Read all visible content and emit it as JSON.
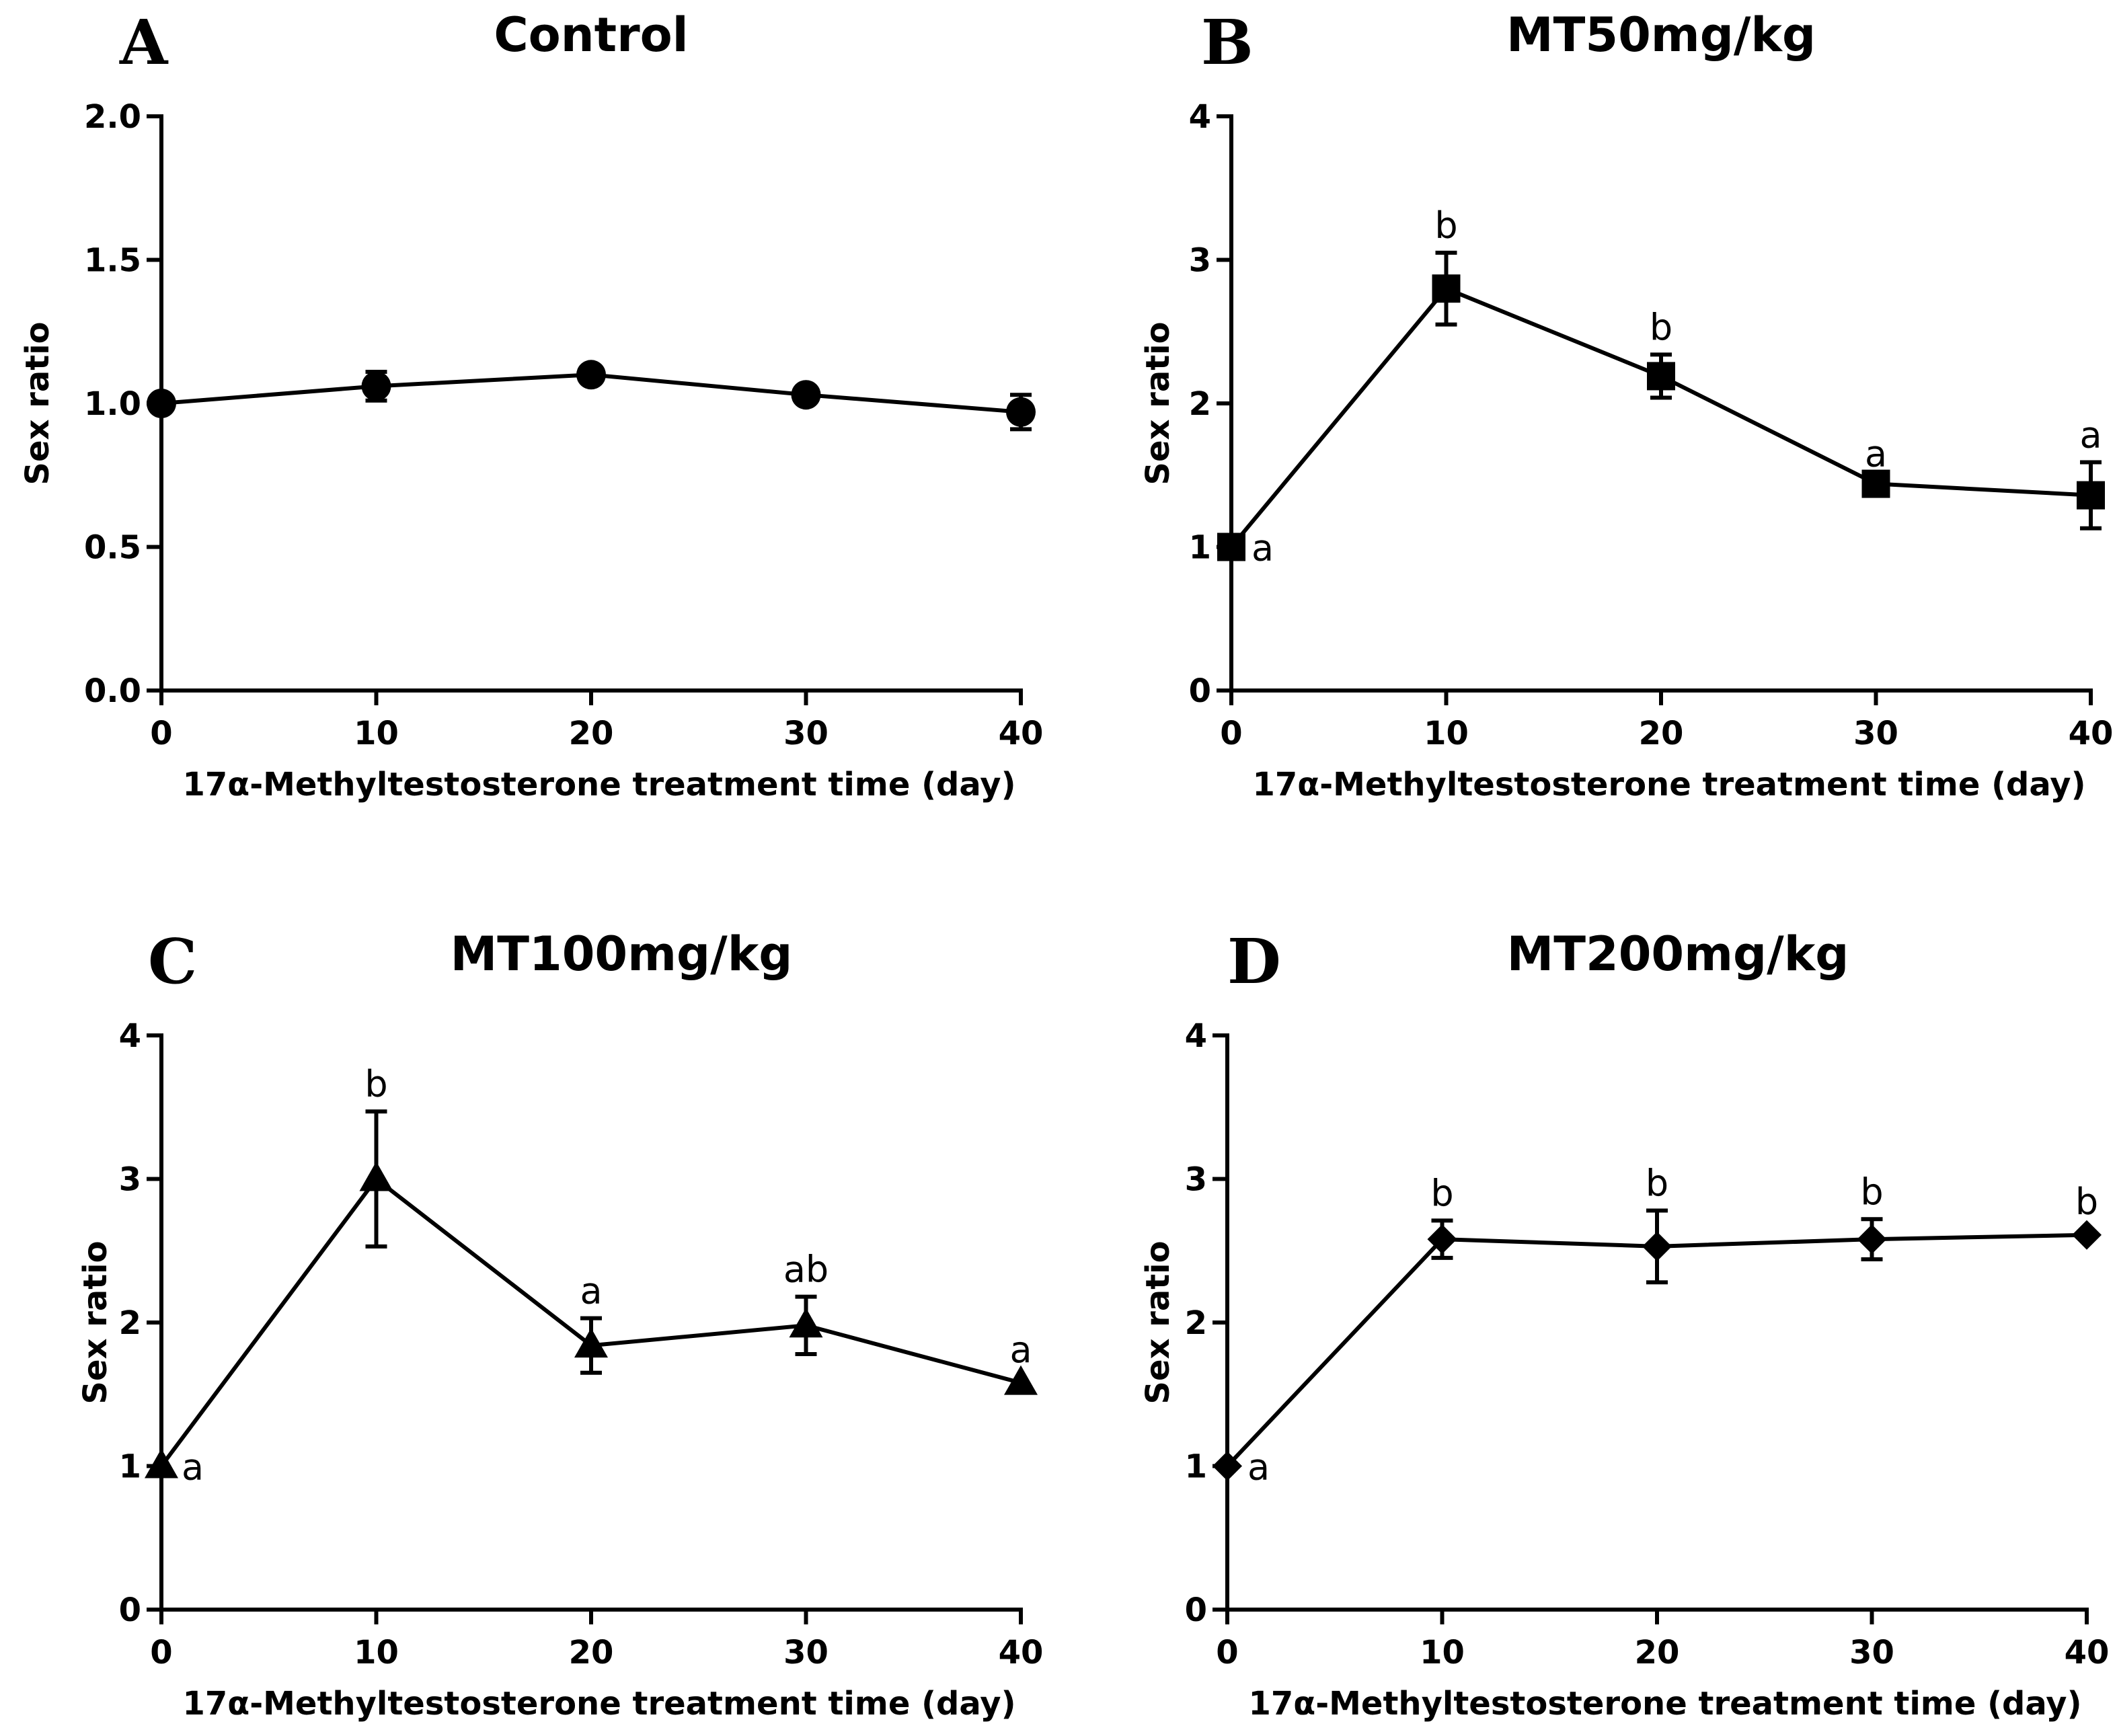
{
  "chart_data": [
    {
      "type": "line",
      "panel": "A",
      "title": "Control",
      "xlabel": "17α-Methyltestosterone treatment time (day)",
      "ylabel": "Sex ratio",
      "xlim": [
        0,
        40
      ],
      "ylim": [
        0,
        2.0
      ],
      "x_ticks": [
        0,
        10,
        20,
        30,
        40
      ],
      "x_tick_labels": [
        "0",
        "10",
        "20",
        "30",
        "40"
      ],
      "y_ticks": [
        0,
        0.5,
        1.0,
        1.5,
        2.0
      ],
      "y_tick_labels": [
        "0.0",
        "0.5",
        "1.0",
        "1.5",
        "2.0"
      ],
      "marker": "circle",
      "series": [
        {
          "name": "Control",
          "x": [
            0,
            10,
            20,
            30,
            40
          ],
          "values": [
            1.0,
            1.06,
            1.1,
            1.03,
            0.97
          ],
          "error": [
            0,
            0.05,
            0,
            0,
            0.06
          ]
        }
      ],
      "annotations": []
    },
    {
      "type": "line",
      "panel": "B",
      "title": "MT50mg/kg",
      "xlabel": "17α-Methyltestosterone treatment time (day)",
      "ylabel": "Sex ratio",
      "xlim": [
        0,
        40
      ],
      "ylim": [
        0,
        4
      ],
      "x_ticks": [
        0,
        10,
        20,
        30,
        40
      ],
      "x_tick_labels": [
        "0",
        "10",
        "20",
        "30",
        "40"
      ],
      "y_ticks": [
        0,
        1,
        2,
        3,
        4
      ],
      "y_tick_labels": [
        "0",
        "1",
        "2",
        "3",
        "4"
      ],
      "marker": "square",
      "series": [
        {
          "name": "MT50mg/kg",
          "x": [
            0,
            10,
            20,
            30,
            40
          ],
          "values": [
            1.0,
            2.8,
            2.19,
            1.44,
            1.36
          ],
          "error": [
            0,
            0.25,
            0.15,
            0.02,
            0.23
          ]
        }
      ],
      "annotations": [
        {
          "x": 0,
          "y": 1.0,
          "text": "a",
          "position": "right"
        },
        {
          "x": 10,
          "y": 3.05,
          "text": "b",
          "position": "above"
        },
        {
          "x": 20,
          "y": 2.34,
          "text": "b",
          "position": "above"
        },
        {
          "x": 30,
          "y": 1.46,
          "text": "a",
          "position": "above"
        },
        {
          "x": 40,
          "y": 1.59,
          "text": "a",
          "position": "above"
        }
      ]
    },
    {
      "type": "line",
      "panel": "C",
      "title": "MT100mg/kg",
      "xlabel": "17α-Methyltestosterone treatment time (day)",
      "ylabel": "Sex ratio",
      "xlim": [
        0,
        40
      ],
      "ylim": [
        0,
        4
      ],
      "x_ticks": [
        0,
        10,
        20,
        30,
        40
      ],
      "x_tick_labels": [
        "0",
        "10",
        "20",
        "30",
        "40"
      ],
      "y_ticks": [
        0,
        1,
        2,
        3,
        4
      ],
      "y_tick_labels": [
        "0",
        "1",
        "2",
        "3",
        "4"
      ],
      "marker": "triangle",
      "series": [
        {
          "name": "MT100mg/kg",
          "x": [
            0,
            10,
            20,
            30,
            40
          ],
          "values": [
            1.0,
            3.0,
            1.84,
            1.98,
            1.58
          ],
          "error": [
            0,
            0.47,
            0.19,
            0.2,
            0
          ]
        }
      ],
      "annotations": [
        {
          "x": 0,
          "y": 1.0,
          "text": "a",
          "position": "right"
        },
        {
          "x": 10,
          "y": 3.47,
          "text": "b",
          "position": "above"
        },
        {
          "x": 20,
          "y": 2.03,
          "text": "a",
          "position": "above"
        },
        {
          "x": 30,
          "y": 2.18,
          "text": "ab",
          "position": "above"
        },
        {
          "x": 40,
          "y": 1.62,
          "text": "a",
          "position": "above"
        }
      ]
    },
    {
      "type": "line",
      "panel": "D",
      "title": "MT200mg/kg",
      "xlabel": "17α-Methyltestosterone treatment time (day)",
      "ylabel": "Sex ratio",
      "xlim": [
        0,
        40
      ],
      "ylim": [
        0,
        4
      ],
      "x_ticks": [
        0,
        10,
        20,
        30,
        40
      ],
      "x_tick_labels": [
        "0",
        "10",
        "20",
        "30",
        "40"
      ],
      "y_ticks": [
        0,
        1,
        2,
        3,
        4
      ],
      "y_tick_labels": [
        "0",
        "1",
        "2",
        "3",
        "4"
      ],
      "marker": "diamond",
      "series": [
        {
          "name": "MT200mg/kg",
          "x": [
            0,
            10,
            20,
            30,
            40
          ],
          "values": [
            1.0,
            2.58,
            2.53,
            2.58,
            2.61
          ],
          "error": [
            0,
            0.13,
            0.25,
            0.14,
            0
          ]
        }
      ],
      "annotations": [
        {
          "x": 0,
          "y": 1.0,
          "text": "a",
          "position": "right"
        },
        {
          "x": 10,
          "y": 2.71,
          "text": "b",
          "position": "above"
        },
        {
          "x": 20,
          "y": 2.78,
          "text": "b",
          "position": "above"
        },
        {
          "x": 30,
          "y": 2.72,
          "text": "b",
          "position": "above"
        },
        {
          "x": 40,
          "y": 2.65,
          "text": "b",
          "position": "above"
        }
      ]
    }
  ]
}
